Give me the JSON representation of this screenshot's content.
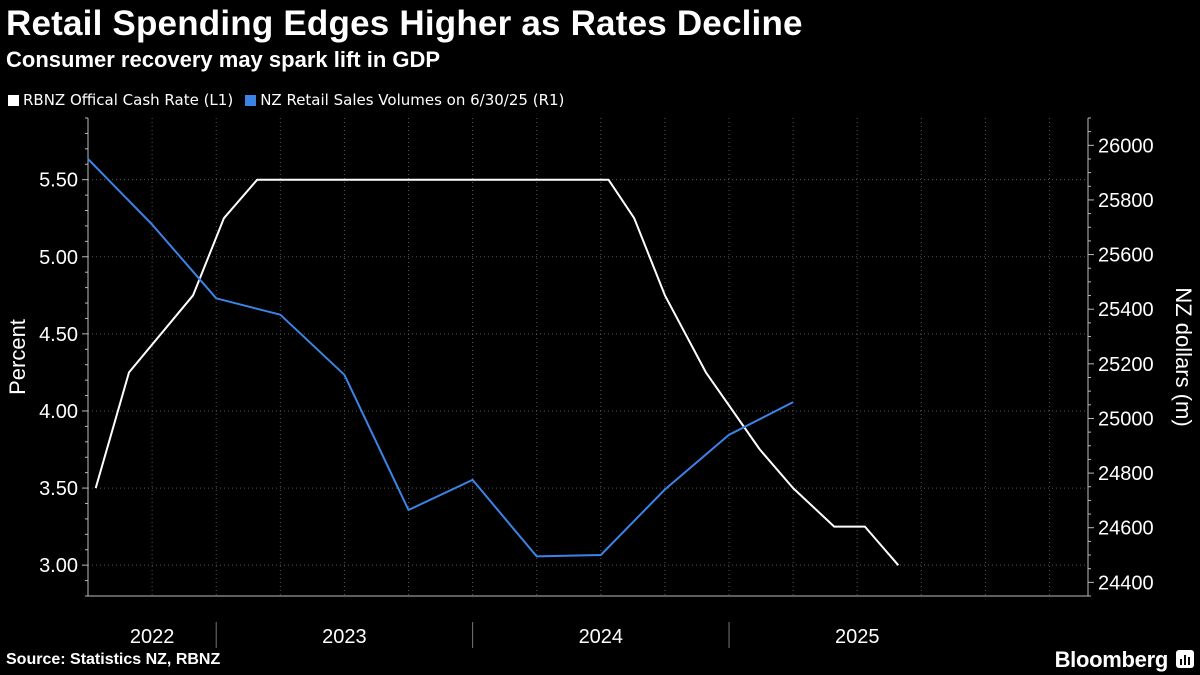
{
  "header": {
    "title": "Retail Spending Edges Higher as Rates Decline",
    "subtitle": "Consumer recovery may spark lift in GDP"
  },
  "legend": {
    "items": [
      {
        "label": "RBNZ Offical Cash Rate (L1)",
        "color": "#ffffff"
      },
      {
        "label": "NZ Retail Sales Volumes on 6/30/25 (R1)",
        "color": "#3b84e6"
      }
    ]
  },
  "footer": {
    "source": "Source: Statistics NZ, RBNZ",
    "brand": "Bloomberg"
  },
  "chart_data": {
    "type": "line",
    "title": "Retail Spending Edges Higher as Rates Decline",
    "subtitle": "Consumer recovery may spark lift in GDP",
    "ylabel_left": "Percent",
    "ylabel_right": "NZ dollars (m)",
    "ylim_left": [
      2.8,
      5.9
    ],
    "ylim_right": [
      24350,
      26100
    ],
    "left_ticks": [
      "3.00",
      "3.50",
      "4.00",
      "4.50",
      "5.00",
      "5.50"
    ],
    "left_tick_values": [
      3.0,
      3.5,
      4.0,
      4.5,
      5.0,
      5.5
    ],
    "right_ticks": [
      "24400",
      "24600",
      "24800",
      "25000",
      "25200",
      "25400",
      "25600",
      "25800",
      "26000"
    ],
    "right_tick_values": [
      24400,
      24600,
      24800,
      25000,
      25200,
      25400,
      25600,
      25800,
      26000
    ],
    "x_domain": [
      2022.0,
      2025.9
    ],
    "year_labels": [
      {
        "label": "2022",
        "x": 2022.25
      },
      {
        "label": "2023",
        "x": 2023.0
      },
      {
        "label": "2024",
        "x": 2024.0
      },
      {
        "label": "2025",
        "x": 2025.0
      }
    ],
    "year_separators": [
      2022.5,
      2023.5,
      2024.5
    ],
    "series": [
      {
        "name": "RBNZ Offical Cash Rate (L1)",
        "axis": "left",
        "color": "#ffffff",
        "points": [
          [
            2022.03,
            3.5
          ],
          [
            2022.16,
            4.25
          ],
          [
            2022.41,
            4.75
          ],
          [
            2022.53,
            5.25
          ],
          [
            2022.66,
            5.5
          ],
          [
            2024.03,
            5.5
          ],
          [
            2024.13,
            5.25
          ],
          [
            2024.25,
            4.75
          ],
          [
            2024.41,
            4.25
          ],
          [
            2024.62,
            3.75
          ],
          [
            2024.75,
            3.5
          ],
          [
            2024.91,
            3.25
          ],
          [
            2025.03,
            3.25
          ],
          [
            2025.16,
            3.0
          ]
        ]
      },
      {
        "name": "NZ Retail Sales Volumes on 6/30/25 (R1)",
        "axis": "right",
        "color": "#3b84e6",
        "points": [
          [
            2022.0,
            25950
          ],
          [
            2022.25,
            25710
          ],
          [
            2022.5,
            25440
          ],
          [
            2022.75,
            25380
          ],
          [
            2023.0,
            25160
          ],
          [
            2023.25,
            24665
          ],
          [
            2023.5,
            24775
          ],
          [
            2023.75,
            24495
          ],
          [
            2024.0,
            24500
          ],
          [
            2024.25,
            24740
          ],
          [
            2024.5,
            24940
          ],
          [
            2024.75,
            25060
          ]
        ]
      }
    ]
  }
}
